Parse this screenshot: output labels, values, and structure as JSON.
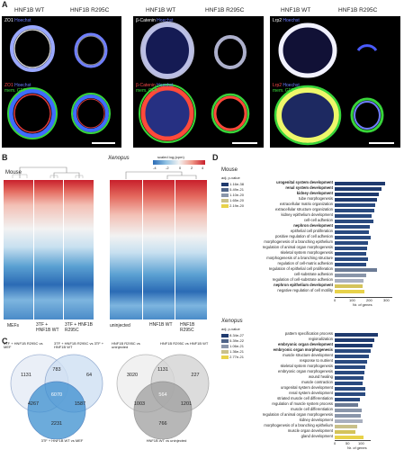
{
  "panels": {
    "a": {
      "label": "A",
      "headers": [
        "HNF1B WT",
        "HNF1B R295C",
        "HNF1B WT",
        "HNF1B R295C",
        "HNF1B WT",
        "HNF1B R295C"
      ],
      "top_labels": [
        {
          "marker": "ZO1",
          "stain": "Hoechst"
        },
        {
          "marker": "β-Catenin",
          "stain": "Hoechst"
        },
        {
          "marker": "Lrp2",
          "stain": "Hoechst"
        }
      ],
      "bottom_labels": [
        {
          "marker": "ZO1",
          "stain": "Hoechst",
          "extra": "mem. GFP"
        },
        {
          "marker": "β-Catenin",
          "stain": "Hoechst",
          "extra": "mem. GFP"
        },
        {
          "marker": "Lrp2",
          "stain": "Hoechst",
          "extra": "mem. GFP"
        }
      ]
    },
    "b": {
      "label": "B",
      "mouse_title": "Mouse",
      "xenopus_title": "Xenopus",
      "legend_title": "scaled log₂(cpm)",
      "legend_ticks": [
        "-4",
        "-2",
        "0",
        "2",
        "4"
      ],
      "mouse_cols": [
        "MEFs",
        "3TF + HNF1B WT",
        "3TF + HNF1B R295C"
      ],
      "xenopus_cols": [
        "uninjected",
        "HNF1B WT",
        "HNF1B R295C"
      ]
    },
    "c": {
      "label": "C",
      "left_sets": [
        {
          "label": "3TF + HNF1B R295C vs MEF"
        },
        {
          "label": "3TF + HNF1B R295C vs 3TF + HNF1B WT"
        },
        {
          "label": "3TF + HNF1B WT vs MEF"
        }
      ],
      "left_numbers": [
        "1131",
        "783",
        "64",
        "6070",
        "4267",
        "1587",
        "2231"
      ],
      "right_sets": [
        {
          "label": "HNF1B R295C vs uninjected"
        },
        {
          "label": "HNF1B R295C vs HNF1B WT"
        },
        {
          "label": "HNF1B WT vs uninjected"
        }
      ],
      "right_numbers": [
        "3020",
        "1131",
        "227",
        "564",
        "1003",
        "1201",
        "766"
      ]
    },
    "d": {
      "label": "D",
      "mouse_title": "Mouse",
      "xenopus_title": "Xenopus",
      "legend_title": "adj. p-value",
      "mouse_pvals": [
        "1.16e-38",
        "5.49e-21",
        "1.10e-20",
        "1.65e-20",
        "2.19e-20"
      ],
      "xenopus_pvals": [
        "8.34e-27",
        "5.39e-22",
        "1.06e-21",
        "1.36e-21",
        "2.77e-21"
      ],
      "mouse_axis_ticks": [
        "0",
        "100",
        "200",
        "300"
      ],
      "mouse_axis_label": "Nr. of genes",
      "xenopus_axis_ticks": [
        "0",
        "50",
        "100"
      ],
      "xenopus_axis_label": "Nr. of genes",
      "mouse_terms": [
        {
          "term": "urogenital system development",
          "value": 300,
          "color": "#1f3a6e"
        },
        {
          "term": "renal system development",
          "value": 280,
          "color": "#1f3a6e"
        },
        {
          "term": "kidney development",
          "value": 265,
          "color": "#1f3a6e"
        },
        {
          "term": "tube morphogenesis",
          "value": 250,
          "color": "#1f3a6e"
        },
        {
          "term": "extracellular matrix organization",
          "value": 240,
          "color": "#2a4a7f"
        },
        {
          "term": "extracellular structure organization",
          "value": 235,
          "color": "#2a4a7f"
        },
        {
          "term": "kidney epithelium development",
          "value": 220,
          "color": "#2a4a7f"
        },
        {
          "term": "cell-cell adhesion",
          "value": 230,
          "color": "#2a4a7f"
        },
        {
          "term": "nephron development",
          "value": 210,
          "color": "#2a4a7f"
        },
        {
          "term": "epithelial cell proliferation",
          "value": 205,
          "color": "#2a4a7f"
        },
        {
          "term": "positive regulation of cell adhesion",
          "value": 215,
          "color": "#2a4a7f"
        },
        {
          "term": "morphogenesis of a branching epithelium",
          "value": 200,
          "color": "#2a4a7f"
        },
        {
          "term": "regulation of animal organ morphogenesis",
          "value": 195,
          "color": "#2a4a7f"
        },
        {
          "term": "skeletal system morphogenesis",
          "value": 190,
          "color": "#2a4a7f"
        },
        {
          "term": "morphogenesis of a branching structure",
          "value": 200,
          "color": "#2a4a7f"
        },
        {
          "term": "regulation of cell-matrix adhesion",
          "value": 185,
          "color": "#2a4a7f"
        },
        {
          "term": "regulation of epithelial cell proliferation",
          "value": 250,
          "color": "#6b7b95"
        },
        {
          "term": "cell-substrate adhesion",
          "value": 190,
          "color": "#8a96aa"
        },
        {
          "term": "regulation of cell-substrate adhesion",
          "value": 170,
          "color": "#a9b0bf"
        },
        {
          "term": "nephron epithelium development",
          "value": 165,
          "color": "#d4c35a"
        },
        {
          "term": "negative regulation of cell motility",
          "value": 175,
          "color": "#e8d24a"
        }
      ],
      "xenopus_terms": [
        {
          "term": "pattern specification process",
          "value": 120,
          "color": "#1f3a6e"
        },
        {
          "term": "regionalization",
          "value": 110,
          "color": "#1f3a6e"
        },
        {
          "term": "embryonic organ development",
          "value": 105,
          "color": "#1f3a6e"
        },
        {
          "term": "embryonic organ morphogenesis",
          "value": 100,
          "color": "#2a4a7f"
        },
        {
          "term": "muscle structure development",
          "value": 95,
          "color": "#2a4a7f"
        },
        {
          "term": "response to nutrient",
          "value": 90,
          "color": "#2a4a7f"
        },
        {
          "term": "skeletal system morphogenesis",
          "value": 85,
          "color": "#2a4a7f"
        },
        {
          "term": "embryonic organ morphogenesis",
          "value": 82,
          "color": "#2a4a7f"
        },
        {
          "term": "wound healing",
          "value": 80,
          "color": "#2a4a7f"
        },
        {
          "term": "muscle contraction",
          "value": 78,
          "color": "#2a4a7f"
        },
        {
          "term": "urogenital system development",
          "value": 86,
          "color": "#2a4a7f"
        },
        {
          "term": "renal system development",
          "value": 84,
          "color": "#2a4a7f"
        },
        {
          "term": "striated muscle cell differentiation",
          "value": 70,
          "color": "#2a4a7f"
        },
        {
          "term": "regulation of muscle system process",
          "value": 65,
          "color": "#6b7b95"
        },
        {
          "term": "muscle cell differentiation",
          "value": 75,
          "color": "#8a96aa"
        },
        {
          "term": "regulation of animal organ morphogenesis",
          "value": 72,
          "color": "#8a96aa"
        },
        {
          "term": "kidney development",
          "value": 78,
          "color": "#a9b0bf"
        },
        {
          "term": "morphogenesis of a branching epithelium",
          "value": 62,
          "color": "#c9c08a"
        },
        {
          "term": "muscle organ development",
          "value": 58,
          "color": "#d4c35a"
        },
        {
          "term": "gland development",
          "value": 80,
          "color": "#e8d24a"
        }
      ]
    }
  }
}
